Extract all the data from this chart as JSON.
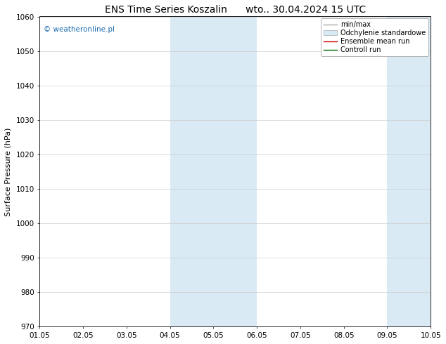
{
  "title_left": "ENS Time Series Koszalin",
  "title_right": "wto.. 30.04.2024 15 UTC",
  "ylabel": "Surface Pressure (hPa)",
  "ylim": [
    970,
    1060
  ],
  "yticks": [
    970,
    980,
    990,
    1000,
    1010,
    1020,
    1030,
    1040,
    1050,
    1060
  ],
  "xlim": [
    0,
    9
  ],
  "xtick_labels": [
    "01.05",
    "02.05",
    "03.05",
    "04.05",
    "05.05",
    "06.05",
    "07.05",
    "08.05",
    "09.05",
    "10.05"
  ],
  "xtick_positions": [
    0,
    1,
    2,
    3,
    4,
    5,
    6,
    7,
    8,
    9
  ],
  "shaded_bands": [
    {
      "x_start": 3,
      "x_end": 4,
      "color": "#daeaf5"
    },
    {
      "x_start": 4,
      "x_end": 5,
      "color": "#daeaf5"
    },
    {
      "x_start": 8,
      "x_end": 9,
      "color": "#daeaf5"
    }
  ],
  "watermark": "© weatheronline.pl",
  "watermark_color": "#1a6bb0",
  "legend_items": [
    {
      "label": "min/max",
      "color": "#aaaaaa",
      "lw": 1.0,
      "style": "line"
    },
    {
      "label": "Odchylenie standardowe",
      "color": "#d8eaf5",
      "style": "box"
    },
    {
      "label": "Ensemble mean run",
      "color": "#cc0000",
      "lw": 1.0,
      "style": "line"
    },
    {
      "label": "Controll run",
      "color": "#006600",
      "lw": 1.0,
      "style": "line"
    }
  ],
  "background_color": "#ffffff",
  "plot_bg_color": "#ffffff",
  "grid_color": "#cccccc",
  "title_fontsize": 10,
  "tick_fontsize": 7.5,
  "ylabel_fontsize": 8,
  "watermark_fontsize": 7.5,
  "legend_fontsize": 7
}
